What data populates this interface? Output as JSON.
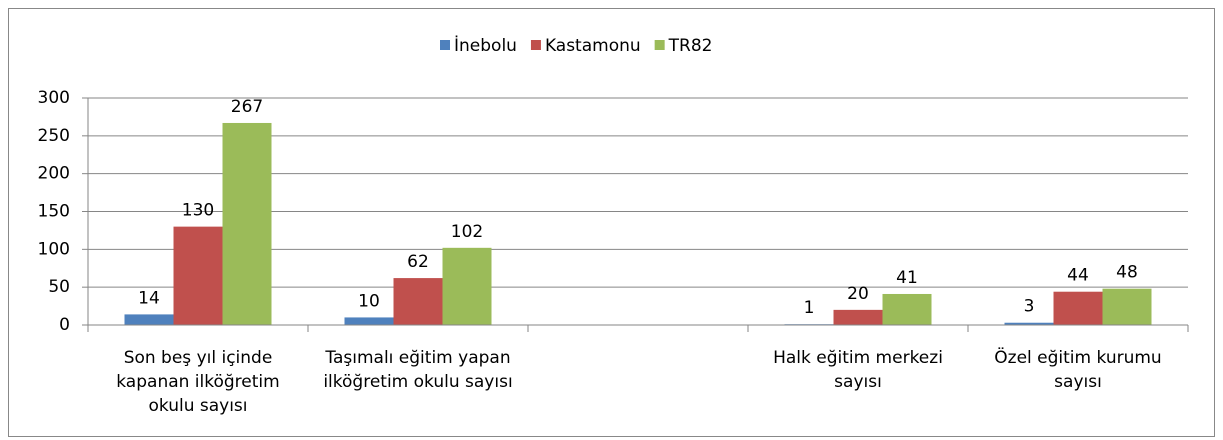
{
  "chart_data": {
    "type": "bar",
    "categories": [
      "Son beş yıl içinde kapanan ilköğretim okulu sayısı",
      "Taşımalı eğitim yapan ilköğretim okulu sayısı",
      null,
      "Halk eğitim merkezi sayısı",
      "Özel eğitim kurumu sayısı"
    ],
    "series": [
      {
        "name": "İnebolu",
        "color": "#4f81bd",
        "values": [
          14,
          10,
          null,
          1,
          3
        ]
      },
      {
        "name": "Kastamonu",
        "color": "#c0504d",
        "values": [
          130,
          62,
          null,
          20,
          44
        ]
      },
      {
        "name": "TR82",
        "color": "#9bbb59",
        "values": [
          267,
          102,
          null,
          41,
          48
        ]
      }
    ],
    "ylim": [
      0,
      300
    ],
    "yticks": [
      0,
      50,
      100,
      150,
      200,
      250,
      300
    ],
    "grid": true,
    "legend": "top"
  }
}
